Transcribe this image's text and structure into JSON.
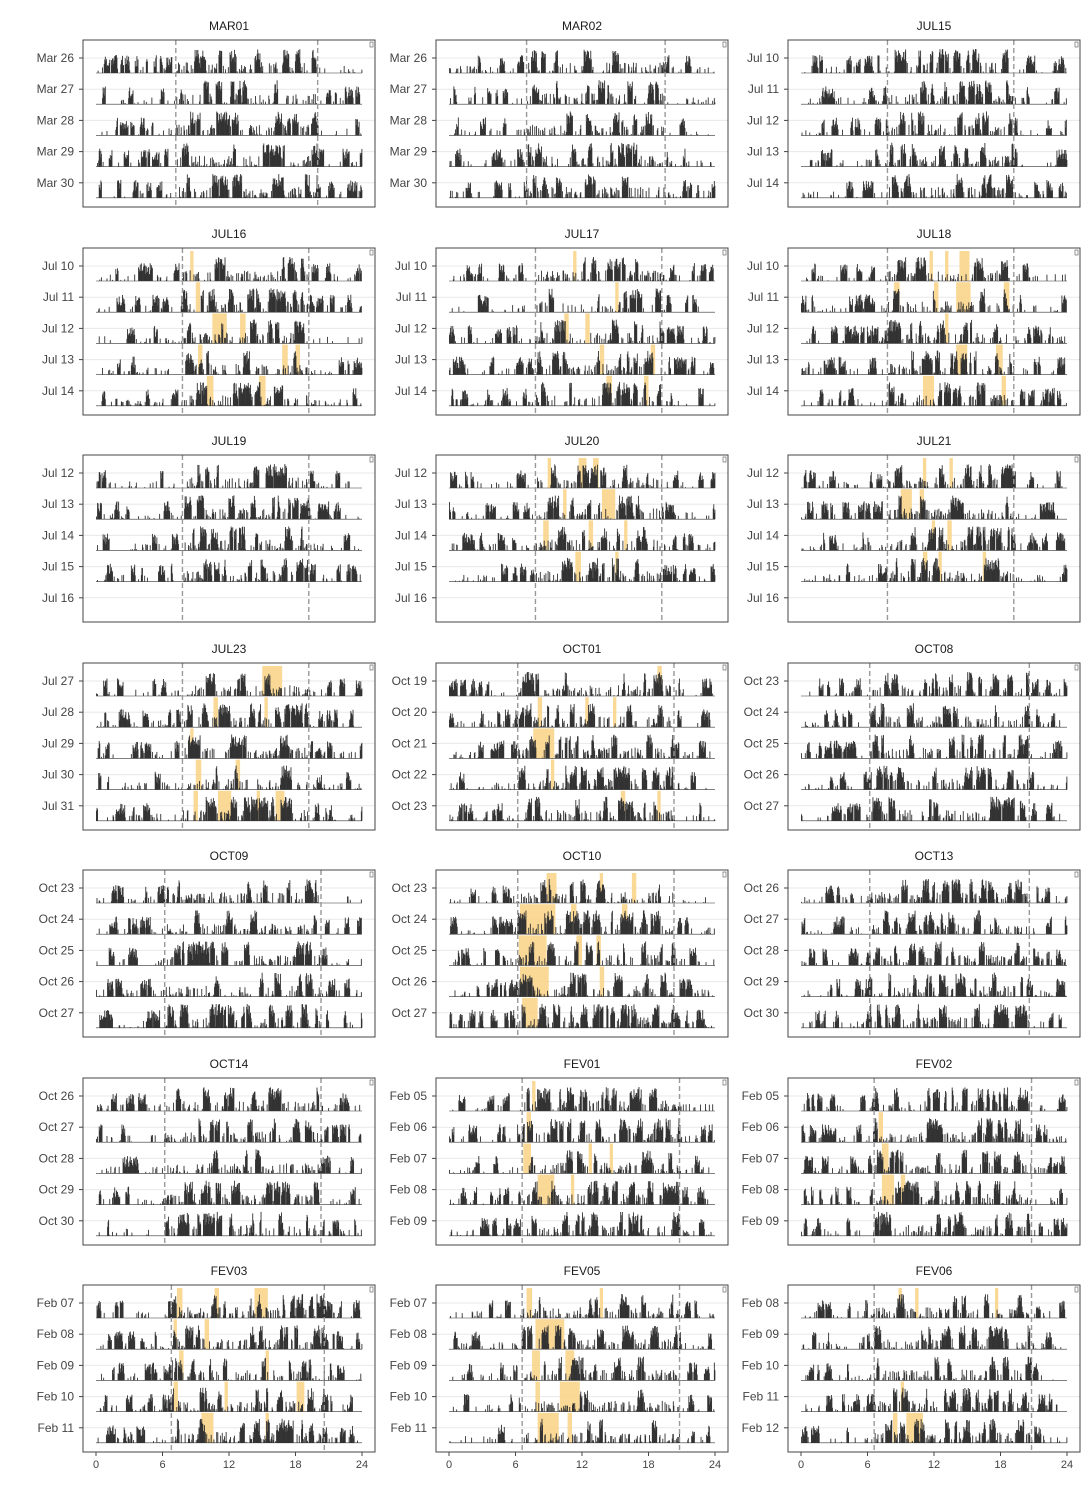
{
  "chart_data": {
    "type": "bar",
    "description_of_marks": "actogram: daily activity counts per hour; orange shading = highlighted periods",
    "x_ticks": [
      0,
      6,
      12,
      18,
      24
    ],
    "xlim": [
      0,
      24
    ],
    "colors": {
      "activity": "#333333",
      "highlight": "#f9d48a",
      "frame": "#444444",
      "dashed": "#999999",
      "grid": "#e8e8e8"
    },
    "panels": [
      {
        "title": "MAR01",
        "days": [
          "Mar 26",
          "Mar 27",
          "Mar 28",
          "Mar 29",
          "Mar 30"
        ],
        "dashed": [
          7.2,
          20.0
        ],
        "highlights": []
      },
      {
        "title": "MAR02",
        "days": [
          "Mar 26",
          "Mar 27",
          "Mar 28",
          "Mar 29",
          "Mar 30"
        ],
        "dashed": [
          7.0,
          19.5
        ],
        "highlights": []
      },
      {
        "title": "JUL15",
        "days": [
          "Jul 10",
          "Jul 11",
          "Jul 12",
          "Jul 13",
          "Jul 14"
        ],
        "dashed": [
          7.8,
          19.2
        ],
        "highlights": []
      },
      {
        "title": "JUL16",
        "days": [
          "Jul 10",
          "Jul 11",
          "Jul 12",
          "Jul 13",
          "Jul 14"
        ],
        "dashed": [
          7.8,
          19.2
        ],
        "highlights": [
          [
            0,
            8.5,
            8.8
          ],
          [
            1,
            9.0,
            9.4
          ],
          [
            2,
            10.5,
            11.8
          ],
          [
            2,
            13.0,
            13.5
          ],
          [
            3,
            9.2,
            9.6
          ],
          [
            3,
            16.8,
            17.3
          ],
          [
            3,
            18.0,
            18.4
          ],
          [
            4,
            10.0,
            10.6
          ],
          [
            4,
            14.7,
            15.3
          ]
        ]
      },
      {
        "title": "JUL17",
        "days": [
          "Jul 10",
          "Jul 11",
          "Jul 12",
          "Jul 13",
          "Jul 14"
        ],
        "dashed": [
          7.8,
          19.2
        ],
        "highlights": [
          [
            0,
            11.2,
            11.5
          ],
          [
            1,
            15.0,
            15.3
          ],
          [
            2,
            10.4,
            10.8
          ],
          [
            2,
            12.3,
            12.7
          ],
          [
            3,
            13.6,
            14.0
          ],
          [
            3,
            18.2,
            18.6
          ],
          [
            4,
            14.2,
            14.7
          ],
          [
            4,
            17.6,
            18.0
          ]
        ]
      },
      {
        "title": "JUL18",
        "days": [
          "Jul 10",
          "Jul 11",
          "Jul 12",
          "Jul 13",
          "Jul 14"
        ],
        "dashed": [
          7.8,
          19.2
        ],
        "highlights": [
          [
            0,
            11.6,
            11.9
          ],
          [
            0,
            13.0,
            13.3
          ],
          [
            0,
            14.3,
            15.2
          ],
          [
            1,
            8.4,
            8.9
          ],
          [
            1,
            12.0,
            12.4
          ],
          [
            1,
            14.0,
            15.3
          ],
          [
            1,
            18.3,
            18.8
          ],
          [
            2,
            13.0,
            13.3
          ],
          [
            3,
            14.0,
            15.0
          ],
          [
            3,
            17.6,
            18.2
          ],
          [
            4,
            11.0,
            12.0
          ],
          [
            4,
            18.1,
            18.5
          ]
        ]
      },
      {
        "title": "JUL19",
        "days": [
          "Jul 12",
          "Jul 13",
          "Jul 14",
          "Jul 15",
          "Jul 16"
        ],
        "dashed": [
          7.8,
          19.2
        ],
        "highlights": [],
        "active_days": 4
      },
      {
        "title": "JUL20",
        "days": [
          "Jul 12",
          "Jul 13",
          "Jul 14",
          "Jul 15",
          "Jul 16"
        ],
        "dashed": [
          7.8,
          19.2
        ],
        "active_days": 4,
        "highlights": [
          [
            0,
            8.9,
            9.2
          ],
          [
            0,
            11.7,
            12.4
          ],
          [
            0,
            13.0,
            13.5
          ],
          [
            1,
            10.3,
            10.6
          ],
          [
            1,
            13.8,
            15.0
          ],
          [
            2,
            8.5,
            9.0
          ],
          [
            2,
            12.6,
            13.0
          ],
          [
            2,
            15.8,
            16.1
          ],
          [
            3,
            11.4,
            11.9
          ],
          [
            3,
            15.0,
            15.3
          ]
        ]
      },
      {
        "title": "JUL21",
        "days": [
          "Jul 12",
          "Jul 13",
          "Jul 14",
          "Jul 15",
          "Jul 16"
        ],
        "dashed": [
          7.8,
          19.2
        ],
        "active_days": 4,
        "highlights": [
          [
            0,
            11.0,
            11.3
          ],
          [
            0,
            13.4,
            13.7
          ],
          [
            1,
            9.0,
            10.0
          ],
          [
            1,
            10.7,
            11.1
          ],
          [
            2,
            11.8,
            12.1
          ],
          [
            2,
            13.2,
            13.6
          ],
          [
            3,
            11.0,
            11.4
          ],
          [
            3,
            12.4,
            12.7
          ],
          [
            3,
            16.4,
            16.7
          ]
        ]
      },
      {
        "title": "JUL23",
        "days": [
          "Jul 27",
          "Jul 28",
          "Jul 29",
          "Jul 30",
          "Jul 31"
        ],
        "dashed": [
          7.8,
          19.2
        ],
        "highlights": [
          [
            0,
            15.0,
            16.8
          ],
          [
            1,
            10.6,
            11.0
          ],
          [
            1,
            15.2,
            15.5
          ],
          [
            2,
            8.5,
            8.8
          ],
          [
            3,
            9.0,
            9.5
          ],
          [
            3,
            12.6,
            13.0
          ],
          [
            4,
            8.8,
            9.2
          ],
          [
            4,
            11.0,
            12.2
          ],
          [
            4,
            14.5,
            14.8
          ],
          [
            4,
            16.2,
            17.0
          ]
        ]
      },
      {
        "title": "OCT01",
        "days": [
          "Oct 19",
          "Oct 20",
          "Oct 21",
          "Oct 22",
          "Oct 23"
        ],
        "dashed": [
          6.2,
          20.3
        ],
        "highlights": [
          [
            0,
            18.8,
            19.2
          ],
          [
            1,
            8.0,
            8.4
          ],
          [
            1,
            12.3,
            12.6
          ],
          [
            1,
            14.8,
            15.1
          ],
          [
            2,
            7.6,
            9.5
          ],
          [
            3,
            9.2,
            9.5
          ],
          [
            4,
            15.5,
            15.9
          ],
          [
            4,
            18.8,
            19.1
          ]
        ]
      },
      {
        "title": "OCT08",
        "days": [
          "Oct 23",
          "Oct 24",
          "Oct 25",
          "Oct 26",
          "Oct 27"
        ],
        "dashed": [
          6.2,
          20.6
        ],
        "highlights": []
      },
      {
        "title": "OCT09",
        "days": [
          "Oct 23",
          "Oct 24",
          "Oct 25",
          "Oct 26",
          "Oct 27"
        ],
        "dashed": [
          6.2,
          20.3
        ],
        "highlights": []
      },
      {
        "title": "OCT10",
        "days": [
          "Oct 23",
          "Oct 24",
          "Oct 25",
          "Oct 26",
          "Oct 27"
        ],
        "dashed": [
          6.2,
          20.3
        ],
        "highlights": [
          [
            0,
            8.8,
            9.7
          ],
          [
            0,
            13.6,
            13.9
          ],
          [
            0,
            16.5,
            16.9
          ],
          [
            1,
            6.4,
            9.6
          ],
          [
            1,
            11.0,
            11.5
          ],
          [
            1,
            15.6,
            16.1
          ],
          [
            2,
            6.3,
            8.8
          ],
          [
            2,
            11.5,
            12.0
          ],
          [
            2,
            13.3,
            13.7
          ],
          [
            3,
            6.4,
            9.0
          ],
          [
            3,
            13.6,
            14.0
          ],
          [
            4,
            6.6,
            8.0
          ]
        ]
      },
      {
        "title": "OCT13",
        "days": [
          "Oct 26",
          "Oct 27",
          "Oct 28",
          "Oct 29",
          "Oct 30"
        ],
        "dashed": [
          6.2,
          20.6
        ],
        "highlights": []
      },
      {
        "title": "OCT14",
        "days": [
          "Oct 26",
          "Oct 27",
          "Oct 28",
          "Oct 29",
          "Oct 30"
        ],
        "dashed": [
          6.2,
          20.3
        ],
        "highlights": []
      },
      {
        "title": "FEV01",
        "days": [
          "Feb 05",
          "Feb 06",
          "Feb 07",
          "Feb 08",
          "Feb 09"
        ],
        "dashed": [
          6.6,
          20.8
        ],
        "highlights": [
          [
            0,
            7.5,
            7.8
          ],
          [
            1,
            7.0,
            7.4
          ],
          [
            2,
            6.7,
            7.4
          ],
          [
            2,
            12.6,
            12.9
          ],
          [
            2,
            14.5,
            14.8
          ],
          [
            3,
            8.0,
            9.5
          ],
          [
            3,
            11.0,
            11.3
          ]
        ]
      },
      {
        "title": "FEV02",
        "days": [
          "Feb 05",
          "Feb 06",
          "Feb 07",
          "Feb 08",
          "Feb 09"
        ],
        "dashed": [
          6.6,
          20.8
        ],
        "highlights": [
          [
            1,
            7.0,
            7.4
          ],
          [
            2,
            7.3,
            7.9
          ],
          [
            3,
            7.3,
            8.4
          ],
          [
            3,
            9.0,
            9.4
          ]
        ]
      },
      {
        "title": "FEV03",
        "days": [
          "Feb 07",
          "Feb 08",
          "Feb 09",
          "Feb 10",
          "Feb 11"
        ],
        "dashed": [
          6.8,
          20.6
        ],
        "highlights": [
          [
            0,
            7.3,
            7.8
          ],
          [
            0,
            10.7,
            11.1
          ],
          [
            0,
            14.3,
            15.5
          ],
          [
            1,
            7.0,
            7.3
          ],
          [
            1,
            9.8,
            10.2
          ],
          [
            2,
            7.5,
            7.9
          ],
          [
            2,
            15.3,
            15.6
          ],
          [
            3,
            7.0,
            7.4
          ],
          [
            3,
            11.6,
            11.9
          ],
          [
            3,
            18.1,
            18.8
          ],
          [
            4,
            9.5,
            10.6
          ],
          [
            4,
            15.3,
            15.6
          ]
        ]
      },
      {
        "title": "FEV05",
        "days": [
          "Feb 07",
          "Feb 08",
          "Feb 09",
          "Feb 10",
          "Feb 11"
        ],
        "dashed": [
          6.6,
          20.8
        ],
        "highlights": [
          [
            0,
            7.0,
            7.5
          ],
          [
            0,
            13.6,
            13.9
          ],
          [
            1,
            7.8,
            10.4
          ],
          [
            2,
            7.5,
            8.2
          ],
          [
            2,
            10.5,
            11.3
          ],
          [
            3,
            7.8,
            8.2
          ],
          [
            3,
            10.0,
            11.8
          ],
          [
            4,
            8.0,
            9.9
          ],
          [
            4,
            10.7,
            11.1
          ]
        ]
      },
      {
        "title": "FEV06",
        "days": [
          "Feb 08",
          "Feb 09",
          "Feb 10",
          "Feb 11",
          "Feb 12"
        ],
        "dashed": [
          6.6,
          20.8
        ],
        "highlights": [
          [
            0,
            8.8,
            9.1
          ],
          [
            0,
            10.3,
            10.6
          ],
          [
            0,
            17.5,
            17.8
          ],
          [
            3,
            9.0,
            9.3
          ],
          [
            4,
            8.3,
            8.7
          ],
          [
            4,
            9.5,
            11.0
          ]
        ]
      }
    ]
  }
}
